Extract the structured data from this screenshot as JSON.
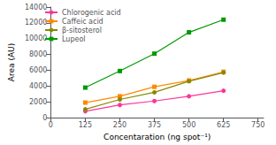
{
  "chart_data": {
    "type": "line",
    "xlabel": "Concentaration (ng spot⁻¹)",
    "ylabel": "Area (AU)",
    "x": [
      125,
      250,
      375,
      500,
      625
    ],
    "series": [
      {
        "name": "Chlorogenic acid",
        "color": "#ff3399",
        "marker": "circle",
        "values": [
          800,
          1600,
          2100,
          2700,
          3400
        ]
      },
      {
        "name": "Caffeic acid",
        "color": "#ff8800",
        "marker": "square",
        "values": [
          1900,
          2700,
          3900,
          4700,
          5800
        ]
      },
      {
        "name": "β-sitosterol",
        "color": "#888800",
        "marker": "circle",
        "values": [
          1050,
          2300,
          3200,
          4600,
          5700
        ]
      },
      {
        "name": "Lupeol",
        "color": "#009900",
        "marker": "square",
        "values": [
          3800,
          5900,
          8100,
          10800,
          12400
        ]
      }
    ],
    "xlim": [
      0,
      770
    ],
    "ylim": [
      0,
      14000
    ],
    "xticks": [
      0,
      125,
      250,
      375,
      500,
      625,
      750
    ],
    "yticks": [
      0,
      2000,
      4000,
      6000,
      8000,
      10000,
      12000,
      14000
    ],
    "grid": false,
    "legend": "upper left"
  }
}
